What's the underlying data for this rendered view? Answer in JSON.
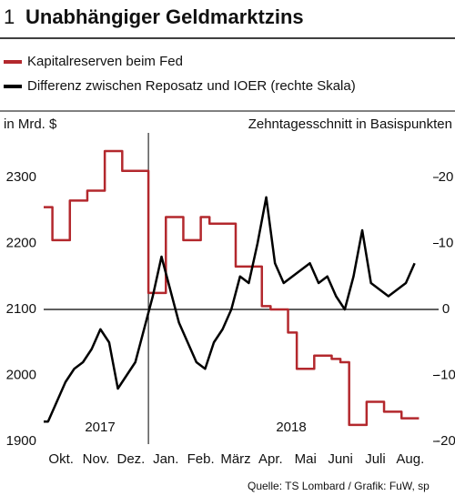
{
  "chart_data": {
    "type": "line",
    "number": "1",
    "title": "Unabhängiger Geldmarktzins",
    "ylabel": "in Mrd. $",
    "y2label": "Zehntagesschnitt in Basispunkten",
    "source": "Quelle: TS Lombard / Grafik: FuW, sp",
    "annotations": [
      "2017",
      "2018"
    ],
    "categories": [
      null,
      null,
      "Okt.",
      null,
      null,
      null,
      "Nov.",
      null,
      null,
      null,
      "Dez.",
      null,
      null,
      null,
      "Jan.",
      null,
      null,
      null,
      "Feb.",
      null,
      null,
      null,
      "März",
      null,
      null,
      null,
      "Apr.",
      null,
      null,
      null,
      "Mai",
      null,
      null,
      null,
      "Juni",
      null,
      null,
      null,
      "Juli",
      null,
      null,
      null,
      "Aug.",
      null
    ],
    "series": [
      {
        "name": "Kapitalreserven beim Fed",
        "color": "#b3282d",
        "drawstyle": "steps",
        "values": [
          2255,
          2205,
          2205,
          2265,
          2265,
          2280,
          2280,
          2340,
          2340,
          2310,
          2310,
          2310,
          2125,
          2125,
          2240,
          2240,
          2205,
          2205,
          2240,
          2230,
          2230,
          2230,
          2165,
          2165,
          2165,
          2105,
          2100,
          2100,
          2065,
          2010,
          2010,
          2030,
          2030,
          2025,
          2020,
          1925,
          1925,
          1960,
          1960,
          1945,
          1945,
          1935,
          1935,
          null
        ]
      },
      {
        "name": "Differenz zwischen Reposatz und IOER (rechte Skala)",
        "color": "#000000",
        "axis": "y2",
        "values": [
          -17,
          -14,
          -11,
          -9,
          -8,
          -6,
          -3,
          -5,
          -12,
          -10,
          -8,
          -3,
          2,
          8,
          3,
          -2,
          -5,
          -8,
          -9,
          -5,
          -3,
          0,
          5,
          4,
          10,
          17,
          7,
          4,
          5,
          6,
          7,
          4,
          5,
          2,
          0,
          5,
          12,
          4,
          3,
          2,
          3,
          4,
          7,
          null
        ]
      }
    ],
    "ylim": [
      1900,
      2400
    ],
    "yticks": [
      1900,
      2000,
      2100,
      2200,
      2300
    ],
    "y2lim": [
      -20,
      30
    ],
    "y2ticks": [
      -20,
      -10,
      0,
      10,
      20
    ]
  }
}
